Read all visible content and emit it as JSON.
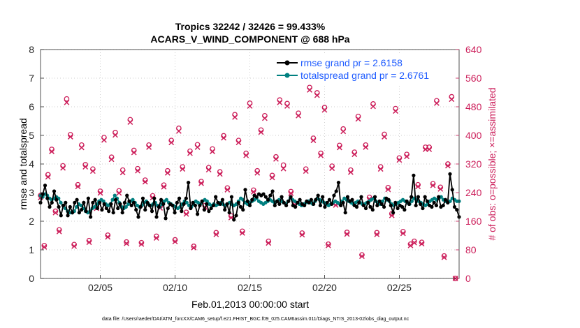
{
  "chart_data": {
    "type": "line",
    "title": "Tropics 32242 / 32426 = 99.433%",
    "subtitle": "ACARS_V_WIND_COMPONENT @ 688 hPa",
    "xlabel": "Feb.01,2013 00:00:00 start",
    "ylabel_left": "rmse and totalspread",
    "ylabel_right": "# of obs: o=possible; ×=assimilated",
    "footer": "data file: /Users/raeder/DAI/ATM_forcXX/CAM6_setup/f.e21.FHIST_BGC.f09_025.CAM6assim.011/Diags_NTrS_2013-02/obs_diag_output.nc",
    "x_ticks": [
      {
        "label": "02/05",
        "day": 5
      },
      {
        "label": "02/10",
        "day": 10
      },
      {
        "label": "02/15",
        "day": 15
      },
      {
        "label": "02/20",
        "day": 20
      },
      {
        "label": "02/25",
        "day": 25
      }
    ],
    "xlim_days": [
      1,
      29
    ],
    "ylim_left": [
      0,
      8
    ],
    "ylim_right": [
      0,
      640
    ],
    "y_ticks_left": [
      "0",
      "1",
      "2",
      "3",
      "4",
      "5",
      "6",
      "7",
      "8"
    ],
    "y_ticks_right": [
      "0",
      "80",
      "160",
      "240",
      "320",
      "400",
      "480",
      "560",
      "640"
    ],
    "colors": {
      "rmse": "#000000",
      "totalspread": "#008080",
      "obs": "#cc1e5a",
      "legend_text": "#1f5cff"
    },
    "legend": {
      "placement": "top-right",
      "entries": [
        "rmse grand pr = 2.6158",
        "totalspread grand pr = 2.6761"
      ]
    },
    "rmse": [
      2.65,
      2.95,
      3.25,
      2.8,
      2.5,
      2.65,
      3.05,
      2.75,
      2.5,
      2.2,
      2.55,
      2.65,
      2.2,
      2.5,
      2.3,
      2.65,
      2.75,
      2.3,
      2.4,
      2.65,
      2.35,
      2.8,
      2.15,
      2.65,
      2.75,
      2.45,
      2.65,
      2.4,
      2.6,
      2.45,
      2.35,
      2.6,
      2.3,
      2.75,
      2.45,
      2.6,
      2.3,
      2.65,
      2.9,
      2.7,
      2.55,
      2.65,
      2.4,
      2.15,
      2.5,
      2.8,
      2.4,
      2.65,
      2.55,
      2.35,
      2.8,
      2.15,
      2.5,
      2.75,
      2.6,
      2.1,
      2.45,
      2.6,
      2.55,
      2.3,
      2.65,
      2.8,
      2.35,
      2.6,
      2.8,
      3.35,
      2.45,
      2.65,
      2.55,
      2.25,
      2.55,
      2.7,
      2.4,
      2.6,
      2.35,
      2.45,
      2.55,
      2.85,
      2.65,
      2.6,
      2.75,
      2.4,
      2.6,
      2.3,
      2.85,
      2.05,
      2.2,
      2.65,
      2.5,
      2.4,
      3.1,
      2.7,
      2.55,
      2.75,
      2.9,
      2.85,
      2.95,
      2.9,
      2.95,
      2.85,
      2.75,
      2.9,
      3.05,
      2.55,
      2.7,
      2.6,
      2.85,
      2.65,
      2.55,
      2.7,
      2.85,
      2.55,
      2.5,
      2.65,
      2.75,
      2.6,
      2.55,
      2.7,
      2.65,
      2.75,
      2.6,
      2.75,
      2.9,
      2.55,
      2.85,
      2.5,
      2.65,
      2.75,
      2.6,
      2.9,
      3.05,
      3.35,
      2.55,
      2.65,
      2.3,
      2.85,
      2.7,
      2.75,
      2.55,
      2.5,
      2.65,
      2.85,
      2.55,
      2.45,
      2.65,
      2.5,
      2.4,
      2.85,
      2.55,
      2.7,
      2.6,
      2.5,
      2.8,
      2.75,
      2.55,
      2.3,
      2.65,
      2.45,
      2.55,
      2.5,
      2.4,
      2.7,
      2.6,
      2.85,
      3.6,
      2.55,
      2.85,
      2.6,
      2.45,
      2.85,
      2.7,
      2.55,
      2.5,
      2.65,
      2.55,
      2.85,
      2.5,
      2.55,
      2.75,
      2.65,
      3.65,
      3.1,
      2.5,
      2.4,
      2.15
    ],
    "totalspread": [
      2.9,
      2.85,
      2.95,
      2.9,
      2.8,
      2.75,
      2.8,
      2.85,
      2.8,
      2.65,
      2.55,
      2.45,
      2.35,
      2.3,
      2.3,
      2.35,
      2.5,
      2.6,
      2.55,
      2.45,
      2.35,
      2.3,
      2.35,
      2.45,
      2.5,
      2.6,
      2.7,
      2.75,
      2.7,
      2.6,
      2.55,
      2.6,
      2.75,
      2.9,
      2.8,
      2.65,
      2.5,
      2.45,
      2.5,
      2.6,
      2.7,
      2.75,
      2.65,
      2.55,
      2.5,
      2.55,
      2.65,
      2.7,
      2.6,
      2.55,
      2.6,
      2.65,
      2.55,
      2.5,
      2.6,
      2.7,
      2.75,
      2.65,
      2.6,
      2.55,
      2.5,
      2.45,
      2.5,
      2.6,
      2.7,
      2.65,
      2.55,
      2.5,
      2.6,
      2.7,
      2.65,
      2.6,
      2.7,
      2.75,
      2.7,
      2.6,
      2.55,
      2.6,
      2.55,
      2.6,
      2.65,
      2.6,
      2.55,
      2.6,
      2.65,
      2.6,
      2.55,
      2.6,
      2.7,
      2.8,
      2.75,
      2.65,
      2.6,
      2.65,
      2.7,
      2.75,
      2.8,
      2.7,
      2.65,
      2.6,
      2.65,
      2.7,
      2.75,
      2.7,
      2.65,
      2.7,
      2.75,
      2.7,
      2.65,
      2.6,
      2.7,
      2.8,
      2.75,
      2.7,
      2.65,
      2.6,
      2.55,
      2.6,
      2.65,
      2.7,
      2.65,
      2.6,
      2.7,
      2.8,
      2.75,
      2.7,
      2.65,
      2.6,
      2.55,
      2.6,
      2.65,
      2.7,
      2.65,
      2.6,
      2.7,
      2.8,
      2.75,
      2.7,
      2.65,
      2.6,
      2.65,
      2.7,
      2.65,
      2.6,
      2.6,
      2.65,
      2.7,
      2.75,
      2.8,
      2.7,
      2.65,
      2.6,
      2.7,
      2.8,
      2.75,
      2.7,
      2.6,
      2.55,
      2.6,
      2.65,
      2.7,
      2.75,
      2.7,
      2.65,
      2.6,
      2.7,
      2.8,
      2.75,
      2.7,
      2.65,
      2.6,
      2.55,
      2.6,
      2.7,
      2.75,
      2.8,
      2.75,
      2.8,
      2.85,
      2.75,
      2.7,
      2.65,
      2.7,
      2.8,
      2.75,
      2.7,
      2.7
    ],
    "obs_possible": [
      [
        1.0,
        232
      ],
      [
        1.25,
        92
      ],
      [
        1.5,
        290
      ],
      [
        1.75,
        361
      ],
      [
        2.0,
        188
      ],
      [
        2.25,
        136
      ],
      [
        2.5,
        315
      ],
      [
        2.75,
        502
      ],
      [
        3.0,
        402
      ],
      [
        3.25,
        95
      ],
      [
        3.5,
        262
      ],
      [
        3.75,
        373
      ],
      [
        4.0,
        318
      ],
      [
        4.25,
        106
      ],
      [
        4.5,
        306
      ],
      [
        4.75,
        201
      ],
      [
        5.0,
        244
      ],
      [
        5.25,
        394
      ],
      [
        5.5,
        121
      ],
      [
        5.75,
        339
      ],
      [
        6.0,
        408
      ],
      [
        6.25,
        245
      ],
      [
        6.5,
        303
      ],
      [
        6.75,
        102
      ],
      [
        7.0,
        444
      ],
      [
        7.25,
        358
      ],
      [
        7.5,
        307
      ],
      [
        7.75,
        100
      ],
      [
        8.0,
        275
      ],
      [
        8.25,
        373
      ],
      [
        8.5,
        231
      ],
      [
        8.75,
        118
      ],
      [
        9.0,
        202
      ],
      [
        9.25,
        261
      ],
      [
        9.5,
        301
      ],
      [
        9.75,
        386
      ],
      [
        10.0,
        108
      ],
      [
        10.25,
        420
      ],
      [
        10.5,
        312
      ],
      [
        10.75,
        185
      ],
      [
        11.0,
        356
      ],
      [
        11.25,
        90
      ],
      [
        11.5,
        374
      ],
      [
        11.75,
        271
      ],
      [
        12.0,
        204
      ],
      [
        12.25,
        310
      ],
      [
        12.5,
        362
      ],
      [
        12.75,
        128
      ],
      [
        13.0,
        298
      ],
      [
        13.25,
        399
      ],
      [
        13.5,
        253
      ],
      [
        13.75,
        175
      ],
      [
        14.0,
        458
      ],
      [
        14.25,
        386
      ],
      [
        14.5,
        132
      ],
      [
        14.75,
        350
      ],
      [
        15.0,
        490
      ],
      [
        15.25,
        247
      ],
      [
        15.5,
        301
      ],
      [
        15.75,
        415
      ],
      [
        16.0,
        455
      ],
      [
        16.25,
        104
      ],
      [
        16.5,
        288
      ],
      [
        16.75,
        340
      ],
      [
        17.0,
        499
      ],
      [
        17.25,
        317
      ],
      [
        17.5,
        489
      ],
      [
        17.75,
        243
      ],
      [
        18.0,
        212
      ],
      [
        18.25,
        462
      ],
      [
        18.5,
        127
      ],
      [
        18.75,
        306
      ],
      [
        19.0,
        534
      ],
      [
        19.25,
        392
      ],
      [
        19.5,
        519
      ],
      [
        19.75,
        350
      ],
      [
        20.0,
        478
      ],
      [
        20.25,
        96
      ],
      [
        20.5,
        314
      ],
      [
        20.75,
        210
      ],
      [
        21.0,
        372
      ],
      [
        21.25,
        418
      ],
      [
        21.5,
        129
      ],
      [
        21.75,
        303
      ],
      [
        22.0,
        353
      ],
      [
        22.25,
        453
      ],
      [
        22.5,
        66
      ],
      [
        22.75,
        373
      ],
      [
        23.0,
        227
      ],
      [
        23.25,
        488
      ],
      [
        23.5,
        128
      ],
      [
        23.75,
        312
      ],
      [
        24.0,
        403
      ],
      [
        24.25,
        254
      ],
      [
        24.5,
        181
      ],
      [
        24.75,
        475
      ],
      [
        25.0,
        337
      ],
      [
        25.25,
        131
      ],
      [
        25.5,
        347
      ],
      [
        25.75,
        96
      ],
      [
        26.0,
        104
      ],
      [
        26.25,
        262
      ],
      [
        26.5,
        101
      ],
      [
        26.75,
        367
      ],
      [
        27.0,
        367
      ],
      [
        27.25,
        265
      ],
      [
        27.5,
        497
      ],
      [
        27.75,
        255
      ],
      [
        28.0,
        63
      ],
      [
        28.25,
        320
      ],
      [
        28.5,
        508
      ],
      [
        28.75,
        0
      ]
    ],
    "obs_assimilated": [
      [
        1.0,
        226
      ],
      [
        1.25,
        88
      ],
      [
        1.5,
        284
      ],
      [
        1.75,
        355
      ],
      [
        2.0,
        184
      ],
      [
        2.25,
        131
      ],
      [
        2.5,
        309
      ],
      [
        2.75,
        492
      ],
      [
        3.0,
        396
      ],
      [
        3.25,
        90
      ],
      [
        3.5,
        257
      ],
      [
        3.75,
        366
      ],
      [
        4.0,
        312
      ],
      [
        4.25,
        101
      ],
      [
        4.5,
        300
      ],
      [
        4.75,
        196
      ],
      [
        5.0,
        239
      ],
      [
        5.25,
        387
      ],
      [
        5.5,
        116
      ],
      [
        5.75,
        333
      ],
      [
        6.0,
        401
      ],
      [
        6.25,
        239
      ],
      [
        6.5,
        296
      ],
      [
        6.75,
        98
      ],
      [
        7.0,
        437
      ],
      [
        7.25,
        352
      ],
      [
        7.5,
        301
      ],
      [
        7.75,
        96
      ],
      [
        8.0,
        270
      ],
      [
        8.25,
        367
      ],
      [
        8.5,
        226
      ],
      [
        8.75,
        113
      ],
      [
        9.0,
        197
      ],
      [
        9.25,
        256
      ],
      [
        9.5,
        295
      ],
      [
        9.75,
        380
      ],
      [
        10.0,
        103
      ],
      [
        10.25,
        412
      ],
      [
        10.5,
        306
      ],
      [
        10.75,
        180
      ],
      [
        11.0,
        350
      ],
      [
        11.25,
        86
      ],
      [
        11.5,
        367
      ],
      [
        11.75,
        266
      ],
      [
        12.0,
        199
      ],
      [
        12.25,
        304
      ],
      [
        12.5,
        355
      ],
      [
        12.75,
        123
      ],
      [
        13.0,
        292
      ],
      [
        13.25,
        393
      ],
      [
        13.5,
        248
      ],
      [
        13.75,
        170
      ],
      [
        14.0,
        451
      ],
      [
        14.25,
        380
      ],
      [
        14.5,
        127
      ],
      [
        14.75,
        344
      ],
      [
        15.0,
        482
      ],
      [
        15.25,
        242
      ],
      [
        15.5,
        295
      ],
      [
        15.75,
        409
      ],
      [
        16.0,
        448
      ],
      [
        16.25,
        99
      ],
      [
        16.5,
        282
      ],
      [
        16.75,
        334
      ],
      [
        17.0,
        492
      ],
      [
        17.25,
        307
      ],
      [
        17.5,
        482
      ],
      [
        17.75,
        238
      ],
      [
        18.0,
        207
      ],
      [
        18.25,
        455
      ],
      [
        18.5,
        122
      ],
      [
        18.75,
        300
      ],
      [
        19.0,
        527
      ],
      [
        19.25,
        386
      ],
      [
        19.5,
        512
      ],
      [
        19.75,
        344
      ],
      [
        20.0,
        471
      ],
      [
        20.25,
        92
      ],
      [
        20.5,
        308
      ],
      [
        20.75,
        205
      ],
      [
        21.0,
        366
      ],
      [
        21.25,
        411
      ],
      [
        21.5,
        124
      ],
      [
        21.75,
        297
      ],
      [
        22.0,
        347
      ],
      [
        22.25,
        446
      ],
      [
        22.5,
        62
      ],
      [
        22.75,
        367
      ],
      [
        23.0,
        222
      ],
      [
        23.25,
        481
      ],
      [
        23.5,
        123
      ],
      [
        23.75,
        306
      ],
      [
        24.0,
        396
      ],
      [
        24.25,
        249
      ],
      [
        24.5,
        176
      ],
      [
        24.75,
        468
      ],
      [
        25.0,
        331
      ],
      [
        25.25,
        126
      ],
      [
        25.5,
        341
      ],
      [
        25.75,
        92
      ],
      [
        26.0,
        100
      ],
      [
        26.25,
        257
      ],
      [
        26.5,
        97
      ],
      [
        26.75,
        361
      ],
      [
        27.0,
        361
      ],
      [
        27.25,
        260
      ],
      [
        27.5,
        490
      ],
      [
        27.75,
        250
      ],
      [
        28.0,
        59
      ],
      [
        28.25,
        315
      ],
      [
        28.5,
        501
      ],
      [
        28.75,
        0
      ]
    ]
  }
}
